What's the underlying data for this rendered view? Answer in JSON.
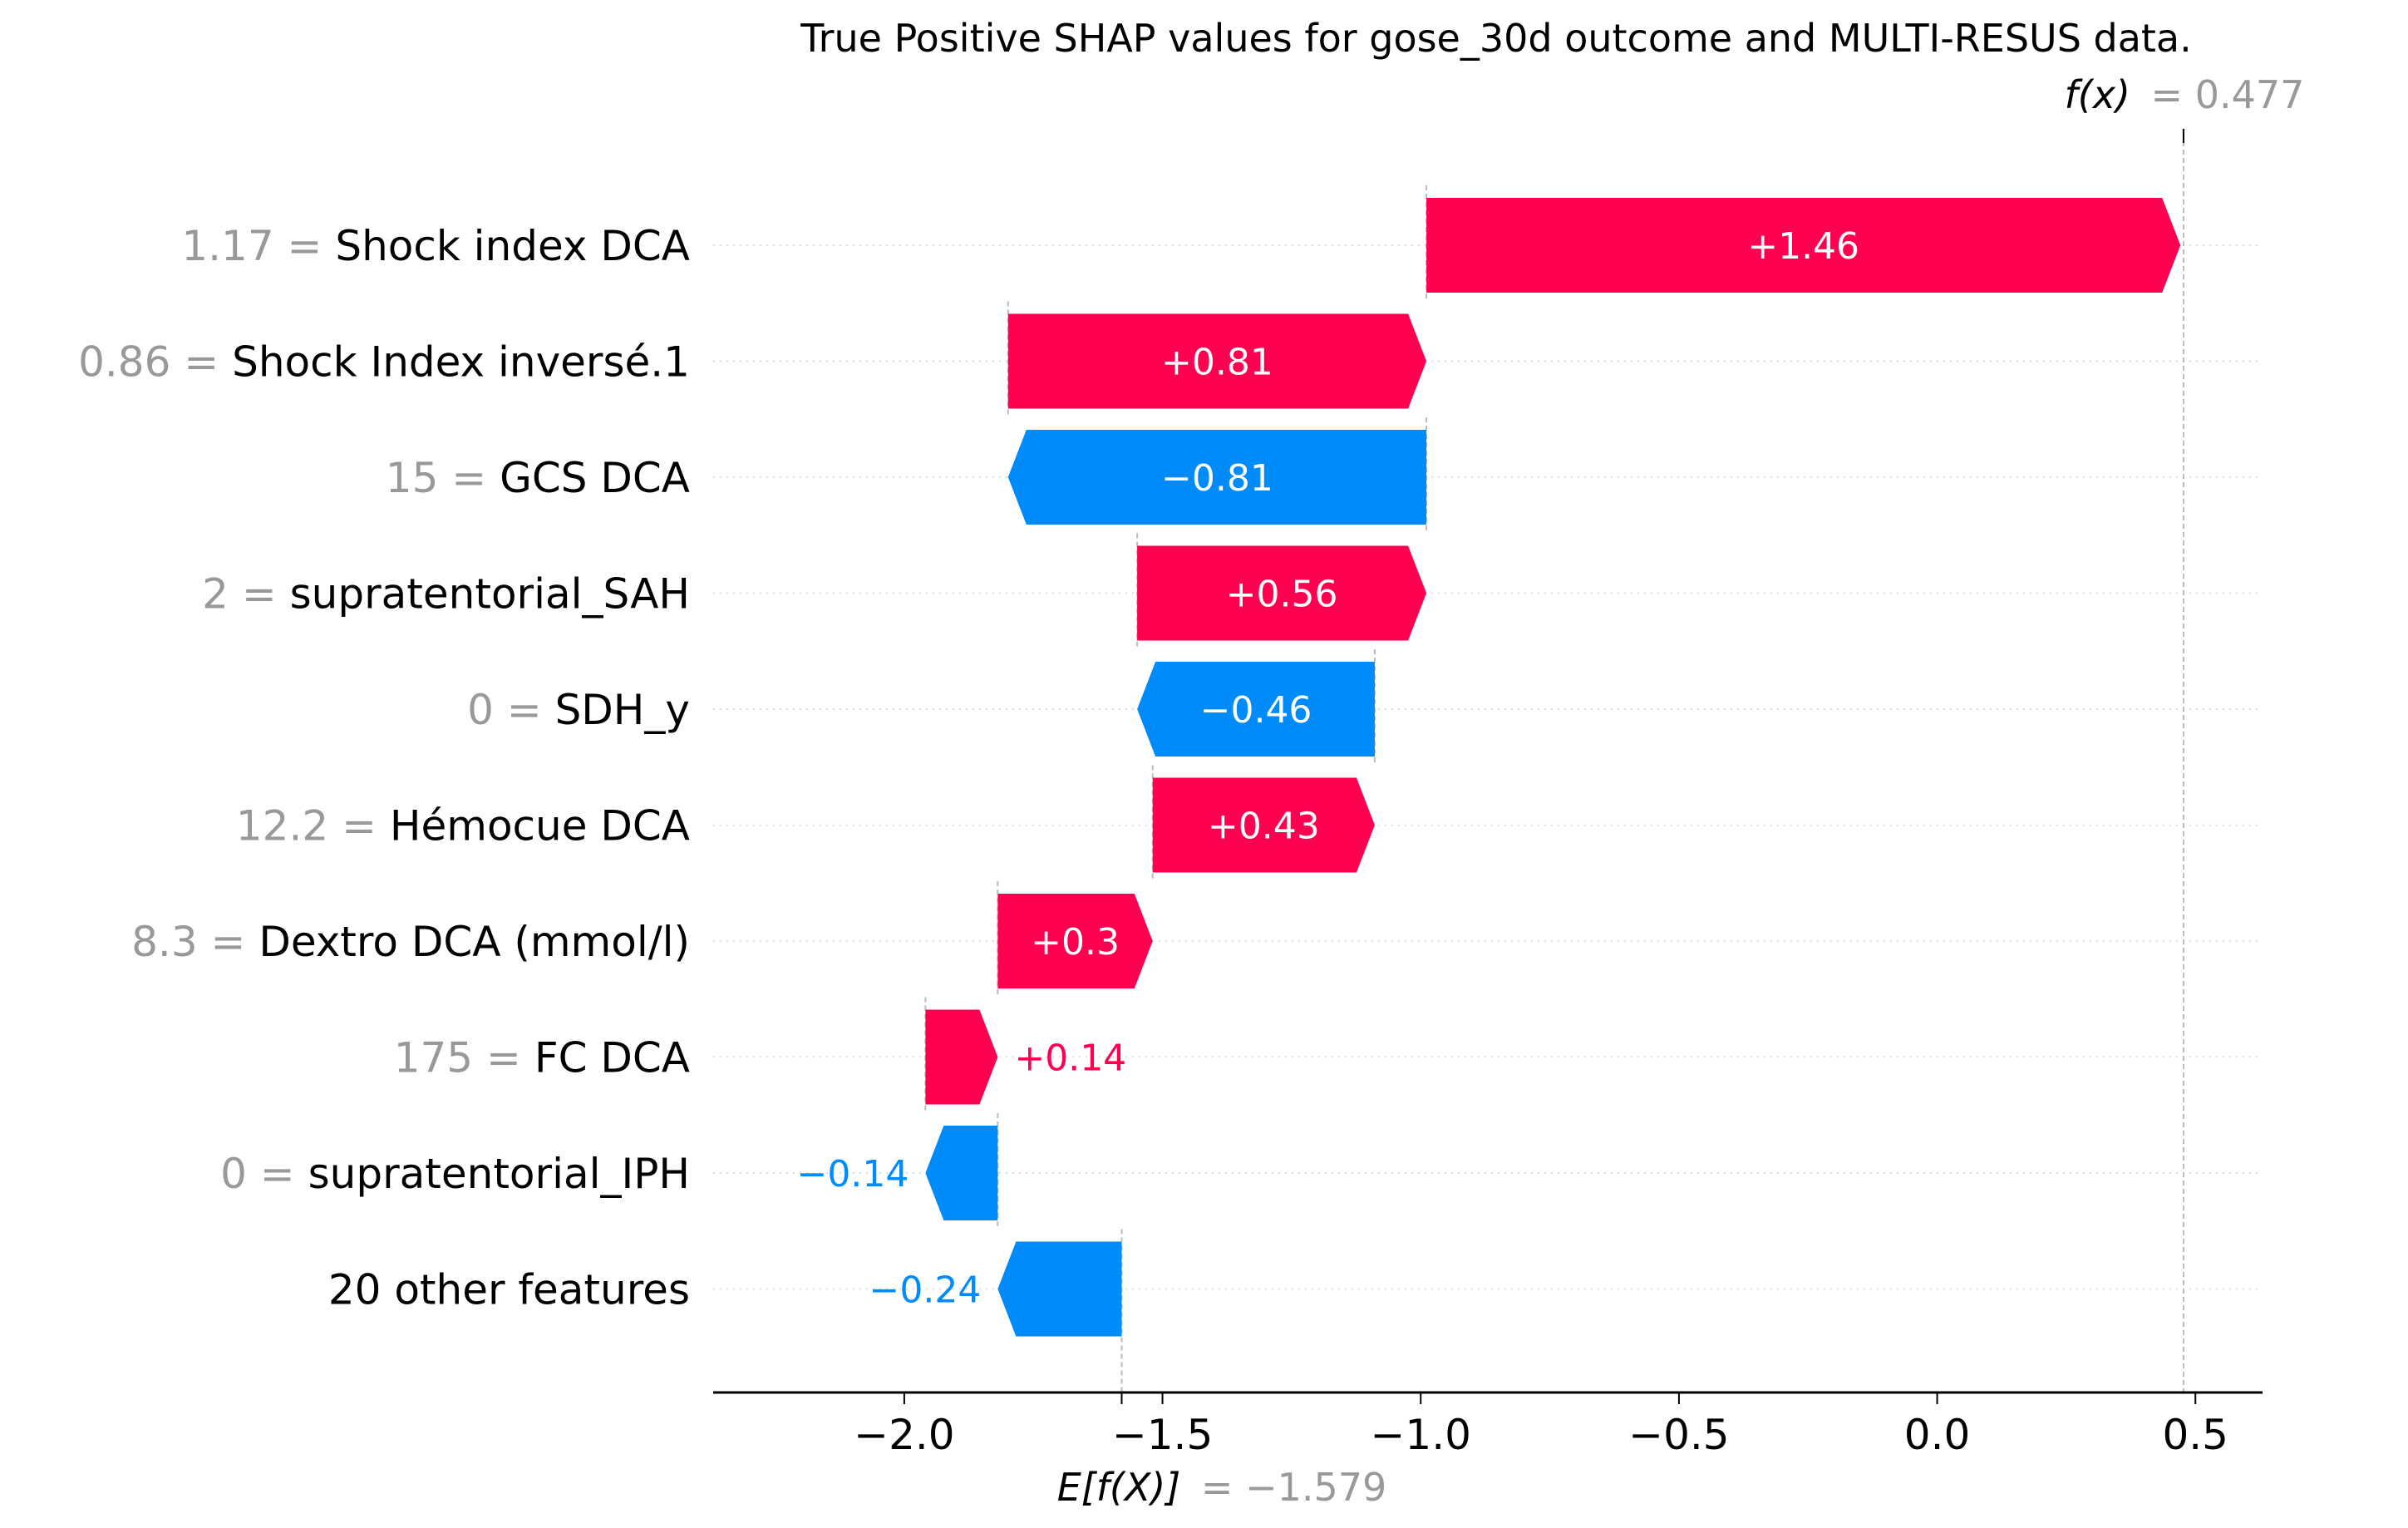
{
  "colors": {
    "positive": "#ff0051",
    "negative": "#008bfb",
    "value_gray": "#999999",
    "text": "#000000",
    "grid": "#cccccc"
  },
  "chart_data": {
    "type": "waterfall",
    "title": "True Positive SHAP values for gose_30d outcome and MULTI-RESUS data.",
    "base_value": -1.579,
    "output_value": 0.477,
    "fx_label": "f(x)",
    "fx_value_text": "= 0.477",
    "efx_label": "E[f(X)]",
    "efx_value_text": "= −1.579",
    "xlim": [
      -2.37,
      0.63
    ],
    "xticks": [
      -2.0,
      -1.5,
      -1.0,
      -0.5,
      0.0,
      0.5
    ],
    "xtick_labels": [
      "−2.0",
      "−1.5",
      "−1.0",
      "−0.5",
      "0.0",
      "0.5"
    ],
    "features": [
      {
        "value": "1.17",
        "name": "Shock index DCA",
        "shap": 1.46,
        "label": "+1.46"
      },
      {
        "value": "0.86",
        "name": "Shock Index inversé.1",
        "shap": 0.81,
        "label": "+0.81"
      },
      {
        "value": "15",
        "name": "GCS DCA",
        "shap": -0.81,
        "label": "−0.81"
      },
      {
        "value": "2",
        "name": "supratentorial_SAH",
        "shap": 0.56,
        "label": "+0.56"
      },
      {
        "value": "0",
        "name": "SDH_y",
        "shap": -0.46,
        "label": "−0.46"
      },
      {
        "value": "12.2",
        "name": "Hémocue DCA",
        "shap": 0.43,
        "label": "+0.43"
      },
      {
        "value": "8.3",
        "name": "Dextro DCA (mmol/l)",
        "shap": 0.3,
        "label": "+0.3"
      },
      {
        "value": "175",
        "name": "FC  DCA",
        "shap": 0.14,
        "label": "+0.14"
      },
      {
        "value": "0",
        "name": "supratentorial_IPH",
        "shap": -0.14,
        "label": "−0.14"
      },
      {
        "value": "",
        "name": "20 other features",
        "shap": -0.24,
        "label": "−0.24"
      }
    ]
  }
}
